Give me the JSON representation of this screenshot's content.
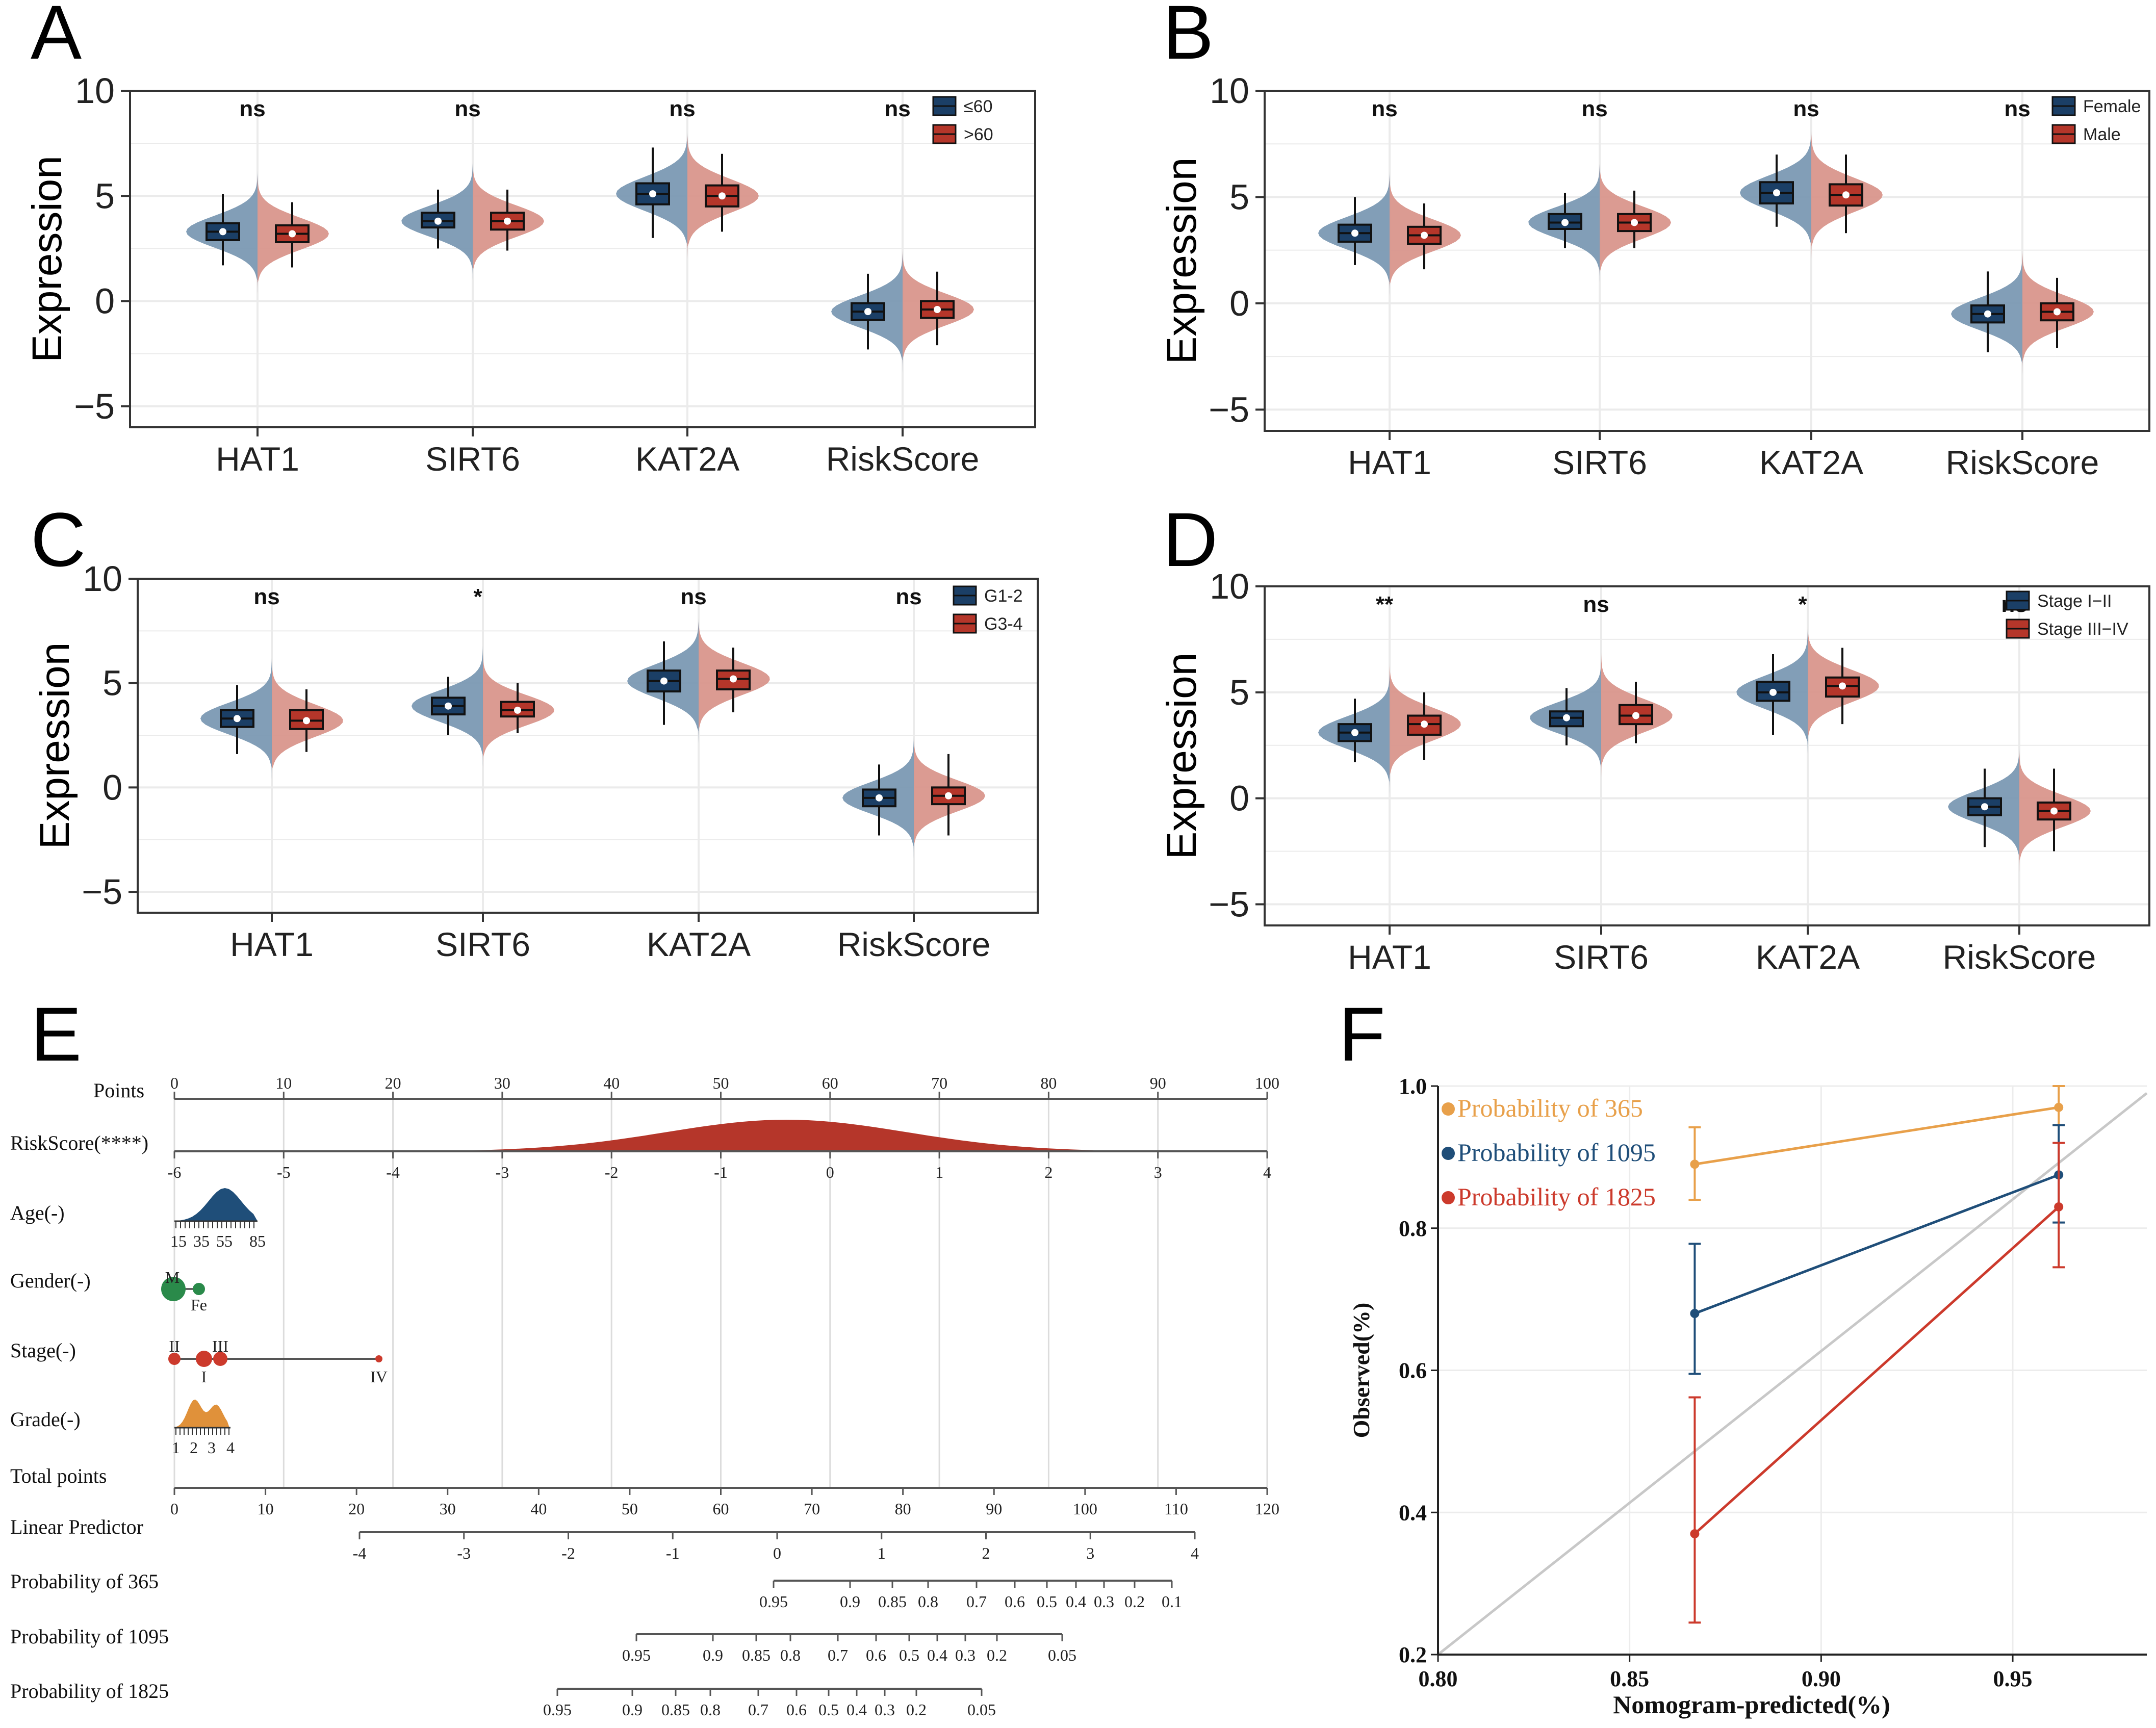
{
  "chart_data": [
    {
      "panel": "A",
      "type": "violin",
      "ylabel": "Expression",
      "ylim": [
        -6,
        10
      ],
      "yticks": [
        -5,
        0,
        5,
        10
      ],
      "categories": [
        "HAT1",
        "SIRT6",
        "KAT2A",
        "RiskScore"
      ],
      "significance": [
        "ns",
        "ns",
        "ns",
        "ns"
      ],
      "legend": [
        {
          "name": "≤60",
          "color": "#1b3f66"
        },
        {
          "name": ">60",
          "color": "#b5362a"
        }
      ],
      "series": [
        {
          "name": "≤60",
          "medians": [
            3.3,
            3.8,
            5.1,
            -0.5
          ],
          "q1": [
            2.9,
            3.5,
            4.6,
            -0.9
          ],
          "q3": [
            3.7,
            4.2,
            5.6,
            -0.1
          ],
          "min": [
            1.7,
            2.5,
            3.0,
            -2.3
          ],
          "max": [
            5.1,
            5.3,
            7.3,
            1.3
          ]
        },
        {
          "name": ">60",
          "medians": [
            3.2,
            3.8,
            5.0,
            -0.4
          ],
          "q1": [
            2.8,
            3.4,
            4.5,
            -0.8
          ],
          "q3": [
            3.6,
            4.2,
            5.5,
            0.0
          ],
          "min": [
            1.6,
            2.4,
            3.3,
            -2.1
          ],
          "max": [
            4.7,
            5.3,
            7.0,
            1.4
          ]
        }
      ]
    },
    {
      "panel": "B",
      "type": "violin",
      "ylabel": "Expression",
      "ylim": [
        -6,
        10
      ],
      "yticks": [
        -5,
        0,
        5,
        10
      ],
      "categories": [
        "HAT1",
        "SIRT6",
        "KAT2A",
        "RiskScore"
      ],
      "significance": [
        "ns",
        "ns",
        "ns",
        "ns"
      ],
      "legend": [
        {
          "name": "Female",
          "color": "#1b3f66"
        },
        {
          "name": "Male",
          "color": "#b5362a"
        }
      ],
      "series": [
        {
          "name": "Female",
          "medians": [
            3.3,
            3.8,
            5.2,
            -0.5
          ],
          "q1": [
            2.9,
            3.5,
            4.7,
            -0.9
          ],
          "q3": [
            3.7,
            4.2,
            5.7,
            -0.1
          ],
          "min": [
            1.8,
            2.6,
            3.6,
            -2.3
          ],
          "max": [
            5.0,
            5.2,
            7.0,
            1.5
          ]
        },
        {
          "name": "Male",
          "medians": [
            3.2,
            3.8,
            5.1,
            -0.4
          ],
          "q1": [
            2.8,
            3.4,
            4.6,
            -0.8
          ],
          "q3": [
            3.6,
            4.2,
            5.6,
            0.0
          ],
          "min": [
            1.6,
            2.6,
            3.3,
            -2.1
          ],
          "max": [
            4.7,
            5.3,
            7.0,
            1.2
          ]
        }
      ]
    },
    {
      "panel": "C",
      "type": "violin",
      "ylabel": "Expression",
      "ylim": [
        -6,
        10
      ],
      "yticks": [
        -5,
        0,
        5,
        10
      ],
      "categories": [
        "HAT1",
        "SIRT6",
        "KAT2A",
        "RiskScore"
      ],
      "significance": [
        "ns",
        "*",
        "ns",
        "ns"
      ],
      "legend": [
        {
          "name": "G1-2",
          "color": "#1b3f66"
        },
        {
          "name": "G3-4",
          "color": "#b5362a"
        }
      ],
      "series": [
        {
          "name": "G1-2",
          "medians": [
            3.3,
            3.9,
            5.1,
            -0.5
          ],
          "q1": [
            2.9,
            3.5,
            4.6,
            -0.9
          ],
          "q3": [
            3.7,
            4.3,
            5.6,
            -0.1
          ],
          "min": [
            1.6,
            2.5,
            3.0,
            -2.3
          ],
          "max": [
            4.9,
            5.3,
            7.0,
            1.1
          ]
        },
        {
          "name": "G3-4",
          "medians": [
            3.2,
            3.7,
            5.2,
            -0.4
          ],
          "q1": [
            2.8,
            3.4,
            4.7,
            -0.8
          ],
          "q3": [
            3.7,
            4.1,
            5.6,
            0.0
          ],
          "min": [
            1.7,
            2.6,
            3.6,
            -2.3
          ],
          "max": [
            4.7,
            5.0,
            6.7,
            1.6
          ]
        }
      ]
    },
    {
      "panel": "D",
      "type": "violin",
      "ylabel": "Expression",
      "ylim": [
        -6,
        10
      ],
      "yticks": [
        -5,
        0,
        5,
        10
      ],
      "categories": [
        "HAT1",
        "SIRT6",
        "KAT2A",
        "RiskScore"
      ],
      "significance": [
        "**",
        "ns",
        "*",
        "ns"
      ],
      "legend": [
        {
          "name": "Stage I−II",
          "color": "#1b3f66"
        },
        {
          "name": "Stage III−IV",
          "color": "#b5362a"
        }
      ],
      "series": [
        {
          "name": "Stage I−II",
          "medians": [
            3.1,
            3.8,
            5.0,
            -0.4
          ],
          "q1": [
            2.7,
            3.4,
            4.6,
            -0.8
          ],
          "q3": [
            3.5,
            4.1,
            5.5,
            0.0
          ],
          "min": [
            1.7,
            2.5,
            3.0,
            -2.3
          ],
          "max": [
            4.7,
            5.2,
            6.8,
            1.4
          ]
        },
        {
          "name": "Stage III−IV",
          "medians": [
            3.5,
            3.9,
            5.3,
            -0.6
          ],
          "q1": [
            3.0,
            3.5,
            4.8,
            -1.0
          ],
          "q3": [
            3.9,
            4.4,
            5.7,
            -0.2
          ],
          "min": [
            1.8,
            2.6,
            3.5,
            -2.5
          ],
          "max": [
            5.0,
            5.5,
            7.1,
            1.4
          ]
        }
      ]
    },
    {
      "panel": "E",
      "type": "nomogram",
      "rows": [
        {
          "label": "Points",
          "ticks": [
            "0",
            "10",
            "20",
            "30",
            "40",
            "50",
            "60",
            "70",
            "80",
            "90",
            "100"
          ],
          "values": [
            0,
            10,
            20,
            30,
            40,
            50,
            60,
            70,
            80,
            90,
            100
          ]
        },
        {
          "label": "RiskScore(****)",
          "ticks": [
            "-6",
            "-5",
            "-4",
            "-3",
            "-2",
            "-1",
            "0",
            "1",
            "2",
            "3",
            "4"
          ],
          "values": [
            -6,
            -5,
            -4,
            -3,
            -2,
            -1,
            0,
            1,
            2,
            3,
            4
          ]
        },
        {
          "label": "Age(-)",
          "ticks": [
            "15",
            "35",
            "55",
            "85"
          ]
        },
        {
          "label": "Gender(-)",
          "ticks": [
            "M",
            "Fe"
          ]
        },
        {
          "label": "Stage(-)",
          "ticks": [
            "II",
            "I",
            "III",
            "IV"
          ]
        },
        {
          "label": "Grade(-)",
          "ticks": [
            "1",
            "2",
            "3",
            "4"
          ]
        },
        {
          "label": "Total points",
          "ticks": [
            "0",
            "10",
            "20",
            "30",
            "40",
            "50",
            "60",
            "70",
            "80",
            "90",
            "100",
            "110",
            "120"
          ],
          "values": [
            0,
            10,
            20,
            30,
            40,
            50,
            60,
            70,
            80,
            90,
            100,
            110,
            120
          ]
        },
        {
          "label": "Linear Predictor",
          "ticks": [
            "-4",
            "-3",
            "-2",
            "-1",
            "0",
            "1",
            "2",
            "3",
            "4"
          ],
          "values": [
            -4,
            -3,
            -2,
            -1,
            0,
            1,
            2,
            3,
            4
          ]
        },
        {
          "label": "Probability of 365",
          "ticks": [
            "0.95",
            "0.9",
            "0.85",
            "0.8",
            "0.7",
            "0.6",
            "0.5",
            "0.4",
            "0.3",
            "0.2",
            "0.1"
          ]
        },
        {
          "label": "Probability of 1095",
          "ticks": [
            "0.95",
            "0.9",
            "0.85",
            "0.8",
            "0.7",
            "0.6",
            "0.5",
            "0.4",
            "0.3",
            "0.2",
            "0.05"
          ]
        },
        {
          "label": "Probability of 1825",
          "ticks": [
            "0.95",
            "0.9",
            "0.85",
            "0.8",
            "0.7",
            "0.6",
            "0.5",
            "0.4",
            "0.3",
            "0.2",
            "0.05"
          ]
        }
      ]
    },
    {
      "panel": "F",
      "type": "line",
      "xlabel": "Nomogram-predicted(%)",
      "ylabel": "Observed(%)",
      "xlim": [
        0.8,
        0.985
      ],
      "ylim": [
        0.2,
        1.0
      ],
      "xticks": [
        "0.80",
        "0.85",
        "0.90",
        "0.95"
      ],
      "yticks": [
        "0.2",
        "0.4",
        "0.6",
        "0.8",
        "1.0"
      ],
      "series": [
        {
          "name": "Probability of 365",
          "color": "#e8a04a",
          "x": [
            0.867,
            0.962
          ],
          "y": [
            0.89,
            0.97
          ],
          "err_low": [
            0.84,
            0.945
          ],
          "err_high": [
            0.942,
            1.0
          ]
        },
        {
          "name": "Probability of 1095",
          "color": "#1f4e79",
          "x": [
            0.867,
            0.962
          ],
          "y": [
            0.68,
            0.875
          ],
          "err_low": [
            0.595,
            0.808
          ],
          "err_high": [
            0.778,
            0.945
          ]
        },
        {
          "name": "Probability of 1825",
          "color": "#cc3a2c",
          "x": [
            0.867,
            0.962
          ],
          "y": [
            0.37,
            0.83
          ],
          "err_low": [
            0.245,
            0.745
          ],
          "err_high": [
            0.562,
            0.92
          ]
        }
      ]
    }
  ],
  "panel_labels": [
    "A",
    "B",
    "C",
    "D",
    "E",
    "F"
  ]
}
